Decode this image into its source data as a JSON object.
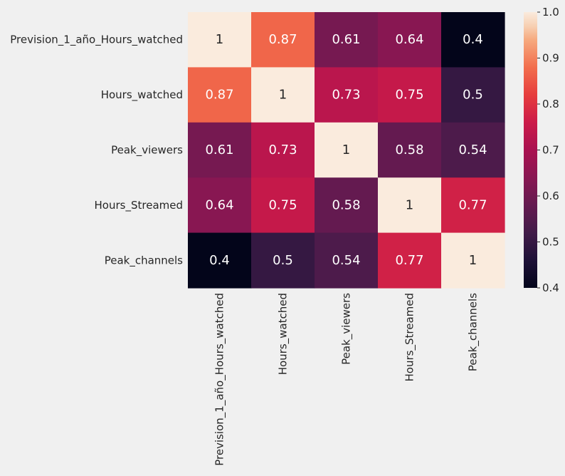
{
  "chart_data": {
    "type": "heatmap",
    "title": "",
    "xlabel": "",
    "ylabel": "",
    "rows": [
      "Prevision_1_año_Hours_watched",
      "Hours_watched",
      "Peak_viewers",
      "Hours_Streamed",
      "Peak_channels"
    ],
    "columns": [
      "Prevision_1_año_Hours_watched",
      "Hours_watched",
      "Peak_viewers",
      "Hours_Streamed",
      "Peak_channels"
    ],
    "values": [
      [
        1,
        0.87,
        0.61,
        0.64,
        0.4
      ],
      [
        0.87,
        1,
        0.73,
        0.75,
        0.5
      ],
      [
        0.61,
        0.73,
        1,
        0.58,
        0.54
      ],
      [
        0.64,
        0.75,
        0.58,
        1,
        0.77
      ],
      [
        0.4,
        0.5,
        0.54,
        0.77,
        1
      ]
    ],
    "value_labels": [
      [
        "1",
        "0.87",
        "0.61",
        "0.64",
        "0.4"
      ],
      [
        "0.87",
        "1",
        "0.73",
        "0.75",
        "0.5"
      ],
      [
        "0.61",
        "0.73",
        "1",
        "0.58",
        "0.54"
      ],
      [
        "0.64",
        "0.75",
        "0.58",
        "1",
        "0.77"
      ],
      [
        "0.4",
        "0.5",
        "0.54",
        "0.77",
        "1"
      ]
    ],
    "colorbar": {
      "min": 0.4,
      "max": 1.0,
      "ticks": [
        "0.4",
        "0.5",
        "0.6",
        "0.7",
        "0.8",
        "0.9",
        "1.0"
      ],
      "colormap": "rocket",
      "low_color": "#03051a",
      "high_color": "#faebdd"
    },
    "annotation_colors": {
      "on_dark": "#ffffff",
      "on_light": "#262626"
    },
    "background_color": "#f0f0f0",
    "grid": false
  }
}
